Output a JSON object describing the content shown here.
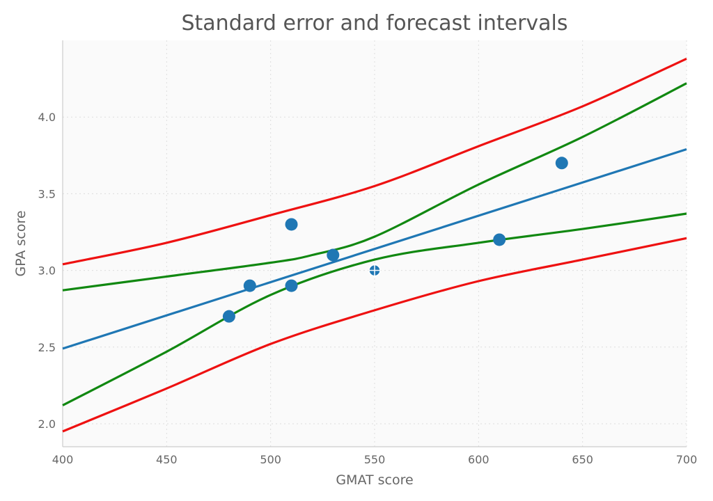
{
  "chart_data": {
    "type": "scatter",
    "title": "Standard error and forecast intervals",
    "xlabel": "GMAT score",
    "ylabel": "GPA score",
    "xlim": [
      400,
      700
    ],
    "ylim": [
      1.85,
      4.5
    ],
    "xticks": [
      400,
      450,
      500,
      550,
      600,
      650,
      700
    ],
    "yticks": [
      2.0,
      2.5,
      3.0,
      3.5,
      4.0
    ],
    "grid": true,
    "points": [
      {
        "x": 480,
        "y": 2.7
      },
      {
        "x": 490,
        "y": 2.9
      },
      {
        "x": 510,
        "y": 3.3
      },
      {
        "x": 510,
        "y": 2.9
      },
      {
        "x": 530,
        "y": 3.1
      },
      {
        "x": 550,
        "y": 3.0
      },
      {
        "x": 610,
        "y": 3.2
      },
      {
        "x": 640,
        "y": 3.7
      }
    ],
    "mean_marker": {
      "x": 550,
      "y": 3.0
    },
    "fit_line": {
      "x": [
        400,
        700
      ],
      "y": [
        2.49,
        3.79
      ]
    },
    "forecast_upper": {
      "x": [
        400,
        450,
        500,
        550,
        600,
        650,
        700
      ],
      "y": [
        3.04,
        3.18,
        3.36,
        3.55,
        3.81,
        4.07,
        4.38
      ]
    },
    "forecast_lower": {
      "x": [
        400,
        450,
        500,
        550,
        600,
        650,
        700
      ],
      "y": [
        1.95,
        2.23,
        2.52,
        2.74,
        2.93,
        3.07,
        3.21
      ]
    },
    "se_upper": {
      "x": [
        400,
        450,
        500,
        520,
        550,
        600,
        650,
        700
      ],
      "y": [
        2.87,
        2.96,
        3.05,
        3.1,
        3.22,
        3.56,
        3.87,
        4.22
      ]
    },
    "se_lower": {
      "x": [
        400,
        450,
        500,
        550,
        600,
        650,
        700
      ],
      "y": [
        2.12,
        2.47,
        2.84,
        3.07,
        3.18,
        3.27,
        3.37
      ]
    },
    "colors": {
      "points": "#1f77b4",
      "fit": "#1f77b4",
      "forecast": "#ee1111",
      "se": "#118811",
      "plot_bg": "#fafafa"
    }
  }
}
